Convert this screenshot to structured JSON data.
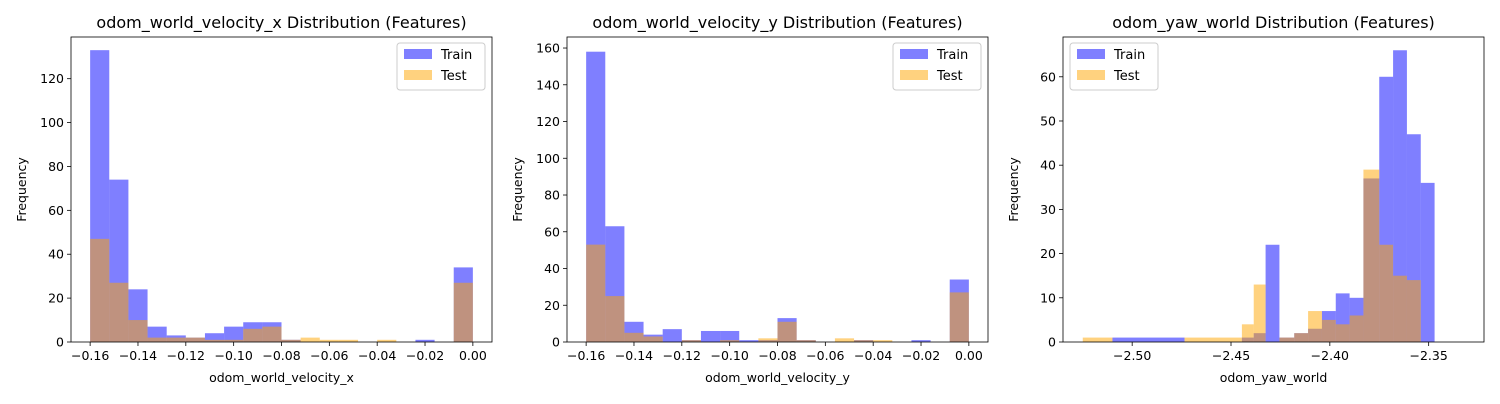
{
  "chart_data": [
    {
      "type": "histogram",
      "title": "odom_world_velocity_x Distribution (Features)",
      "xlabel": "odom_world_velocity_x",
      "ylabel": "Frequency",
      "xlim": [
        -0.168,
        0.008
      ],
      "ylim": [
        0,
        139
      ],
      "xticks": [
        -0.16,
        -0.14,
        -0.12,
        -0.1,
        -0.08,
        -0.06,
        -0.04,
        -0.02,
        0.0
      ],
      "xtick_labels": [
        "−0.16",
        "−0.14",
        "−0.12",
        "−0.10",
        "−0.08",
        "−0.06",
        "−0.04",
        "−0.02",
        "0.00"
      ],
      "yticks": [
        0,
        20,
        40,
        60,
        80,
        100,
        120
      ],
      "legend": "top-right",
      "grid": false,
      "series": [
        {
          "name": "Train",
          "color": "#0000ff",
          "opacity": 0.5,
          "bin_edges": [
            -0.16,
            -0.152,
            -0.144,
            -0.136,
            -0.128,
            -0.12,
            -0.112,
            -0.104,
            -0.096,
            -0.088,
            -0.08,
            -0.072,
            -0.064,
            -0.056,
            -0.048,
            -0.04,
            -0.032,
            -0.024,
            -0.016,
            -0.008,
            0.0
          ],
          "counts": [
            133,
            74,
            24,
            7,
            3,
            2,
            4,
            7,
            9,
            9,
            1,
            0,
            0,
            0,
            0,
            0,
            0,
            1,
            0,
            34
          ]
        },
        {
          "name": "Test",
          "color": "#ffa500",
          "opacity": 0.5,
          "bin_edges": [
            -0.16,
            -0.152,
            -0.144,
            -0.136,
            -0.128,
            -0.12,
            -0.112,
            -0.104,
            -0.096,
            -0.088,
            -0.08,
            -0.072,
            -0.064,
            -0.056,
            -0.048,
            -0.04,
            -0.032,
            -0.024,
            -0.016,
            -0.008,
            0.0
          ],
          "counts": [
            47,
            27,
            10,
            2,
            2,
            2,
            1,
            1,
            6,
            7,
            1,
            2,
            1,
            1,
            0,
            1,
            0,
            0,
            0,
            27
          ]
        }
      ]
    },
    {
      "type": "histogram",
      "title": "odom_world_velocity_y Distribution (Features)",
      "xlabel": "odom_world_velocity_y",
      "ylabel": "Frequency",
      "xlim": [
        -0.168,
        0.008
      ],
      "ylim": [
        0,
        166
      ],
      "xticks": [
        -0.16,
        -0.14,
        -0.12,
        -0.1,
        -0.08,
        -0.06,
        -0.04,
        -0.02,
        0.0
      ],
      "xtick_labels": [
        "−0.16",
        "−0.14",
        "−0.12",
        "−0.10",
        "−0.08",
        "−0.06",
        "−0.04",
        "−0.02",
        "0.00"
      ],
      "yticks": [
        0,
        20,
        40,
        60,
        80,
        100,
        120,
        140,
        160
      ],
      "legend": "top-right",
      "grid": false,
      "series": [
        {
          "name": "Train",
          "color": "#0000ff",
          "opacity": 0.5,
          "bin_edges": [
            -0.16,
            -0.152,
            -0.144,
            -0.136,
            -0.128,
            -0.12,
            -0.112,
            -0.104,
            -0.096,
            -0.088,
            -0.08,
            -0.072,
            -0.064,
            -0.056,
            -0.048,
            -0.04,
            -0.032,
            -0.024,
            -0.016,
            -0.008,
            0.0
          ],
          "counts": [
            158,
            63,
            11,
            4,
            7,
            1,
            6,
            6,
            1,
            1,
            13,
            1,
            0,
            0,
            1,
            0,
            0,
            1,
            0,
            34
          ]
        },
        {
          "name": "Test",
          "color": "#ffa500",
          "opacity": 0.5,
          "bin_edges": [
            -0.16,
            -0.152,
            -0.144,
            -0.136,
            -0.128,
            -0.12,
            -0.112,
            -0.104,
            -0.096,
            -0.088,
            -0.08,
            -0.072,
            -0.064,
            -0.056,
            -0.048,
            -0.04,
            -0.032,
            -0.024,
            -0.016,
            -0.008,
            0.0
          ],
          "counts": [
            53,
            25,
            5,
            3,
            0,
            1,
            0,
            1,
            0,
            2,
            11,
            1,
            0,
            2,
            1,
            1,
            0,
            0,
            0,
            27
          ]
        }
      ]
    },
    {
      "type": "histogram",
      "title": "odom_yaw_world Distribution (Features)",
      "xlabel": "odom_yaw_world",
      "ylabel": "Frequency",
      "xlim": [
        -2.535,
        -2.322
      ],
      "ylim": [
        0,
        69
      ],
      "xticks": [
        -2.5,
        -2.45,
        -2.4,
        -2.35
      ],
      "xtick_labels": [
        "−2.50",
        "−2.45",
        "−2.40",
        "−2.35"
      ],
      "yticks": [
        0,
        10,
        20,
        30,
        40,
        50,
        60
      ],
      "legend": "top-left",
      "grid": false,
      "series": [
        {
          "name": "Train",
          "color": "#0000ff",
          "opacity": 0.5,
          "bin_edges": [
            -2.51,
            -2.4735,
            -2.4445,
            -2.4385,
            -2.4325,
            -2.4255,
            -2.418,
            -2.411,
            -2.404,
            -2.397,
            -2.39,
            -2.383,
            -2.375,
            -2.368,
            -2.361,
            -2.354,
            -2.347,
            -2.34,
            -2.333,
            -2.326
          ],
          "counts": [
            1,
            0,
            1,
            2,
            22,
            1,
            2,
            3,
            7,
            11,
            10,
            37,
            60,
            66,
            47,
            36,
            0,
            0,
            0
          ]
        },
        {
          "name": "Test",
          "color": "#ffa500",
          "opacity": 0.5,
          "bin_edges": [
            -2.525,
            -2.51,
            -2.4735,
            -2.4445,
            -2.4385,
            -2.4325,
            -2.4255,
            -2.418,
            -2.411,
            -2.404,
            -2.397,
            -2.39,
            -2.383,
            -2.375,
            -2.368,
            -2.361,
            -2.354,
            -2.347,
            -2.34,
            -2.326
          ],
          "counts": [
            1,
            0,
            1,
            4,
            13,
            0,
            1,
            2,
            7,
            5,
            4,
            6,
            39,
            22,
            15,
            14,
            0,
            0,
            0
          ]
        }
      ]
    }
  ]
}
